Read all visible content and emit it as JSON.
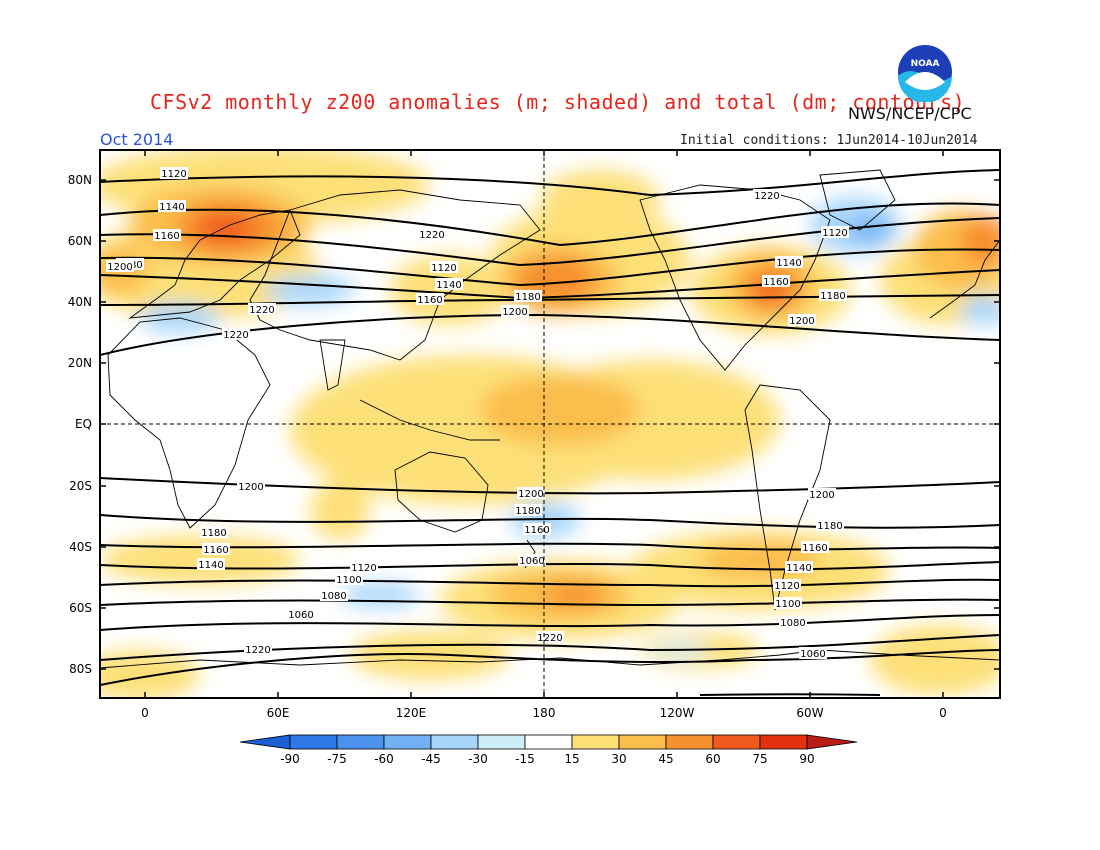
{
  "header": {
    "title": "CFSv2 monthly z200 anomalies (m; shaded) and total (dm; contours)",
    "agency": "NWS/NCEP/CPC",
    "period": "Oct 2014",
    "initial_conditions": "Initial conditions: 1Jun2014-10Jun2014",
    "logo_text": "NOAA"
  },
  "map": {
    "lat_ticks": [
      "80N",
      "60N",
      "40N",
      "20N",
      "EQ",
      "20S",
      "40S",
      "60S",
      "80S"
    ],
    "lon_ticks": [
      "0",
      "60E",
      "120E",
      "180",
      "120W",
      "60W",
      "0"
    ],
    "contour_labels": [
      "1120",
      "1140",
      "1160",
      "1180",
      "1200",
      "1220",
      "1120",
      "1140",
      "1160",
      "1180",
      "1200",
      "1220",
      "1120",
      "1140",
      "1160",
      "1180",
      "1200",
      "1220",
      "1220",
      "1200",
      "1180",
      "1160",
      "1140",
      "1120",
      "1100",
      "1080",
      "1060",
      "1220",
      "1200",
      "1180",
      "1160",
      "1060",
      "1220",
      "1200",
      "1180",
      "1160",
      "1140",
      "1120",
      "1100",
      "1080",
      "1060"
    ]
  },
  "colorbar": {
    "labels": [
      "-90",
      "-75",
      "-60",
      "-45",
      "-30",
      "-15",
      "15",
      "30",
      "45",
      "60",
      "75",
      "90"
    ],
    "colors": [
      "#1a5fd6",
      "#2e78e6",
      "#4b93ee",
      "#72b0f4",
      "#a7d6fa",
      "#cdeef8",
      "#ffffff",
      "#fde078",
      "#fbbd4b",
      "#f7902f",
      "#f05a1c",
      "#e2320f",
      "#b81c14"
    ]
  },
  "colors": {
    "title": "#e8251b",
    "period": "#2a55d8",
    "contour": "#000000"
  }
}
